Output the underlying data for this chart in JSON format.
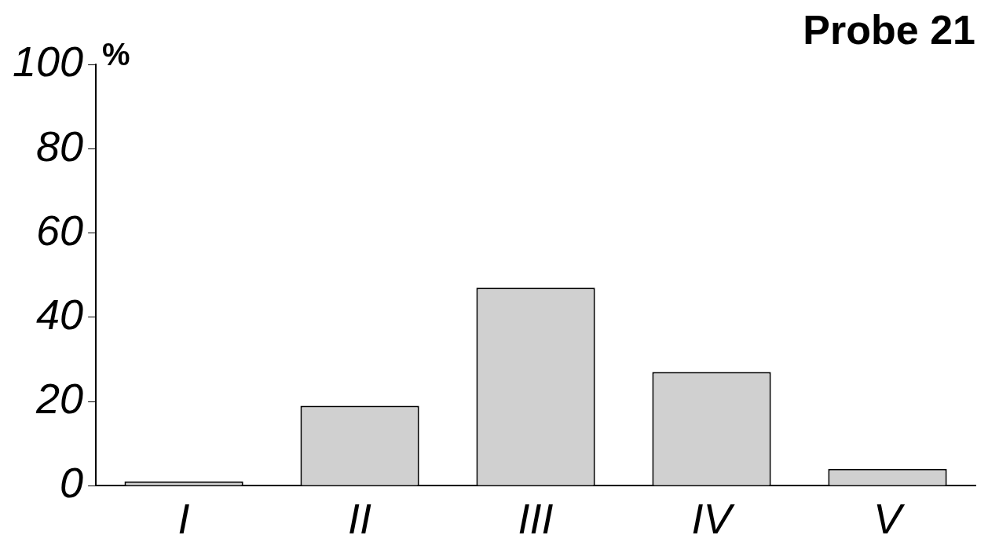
{
  "chart_data": {
    "type": "bar",
    "title": "Probe 21",
    "ylabel": "%",
    "categories": [
      "I",
      "II",
      "III",
      "IV",
      "V"
    ],
    "values": [
      1,
      19,
      47,
      27,
      4
    ],
    "color": "#d0d0d0",
    "ylim": [
      0,
      100
    ],
    "yticks": [
      0,
      20,
      40,
      60,
      80,
      100
    ],
    "grid": false,
    "legend": false
  }
}
